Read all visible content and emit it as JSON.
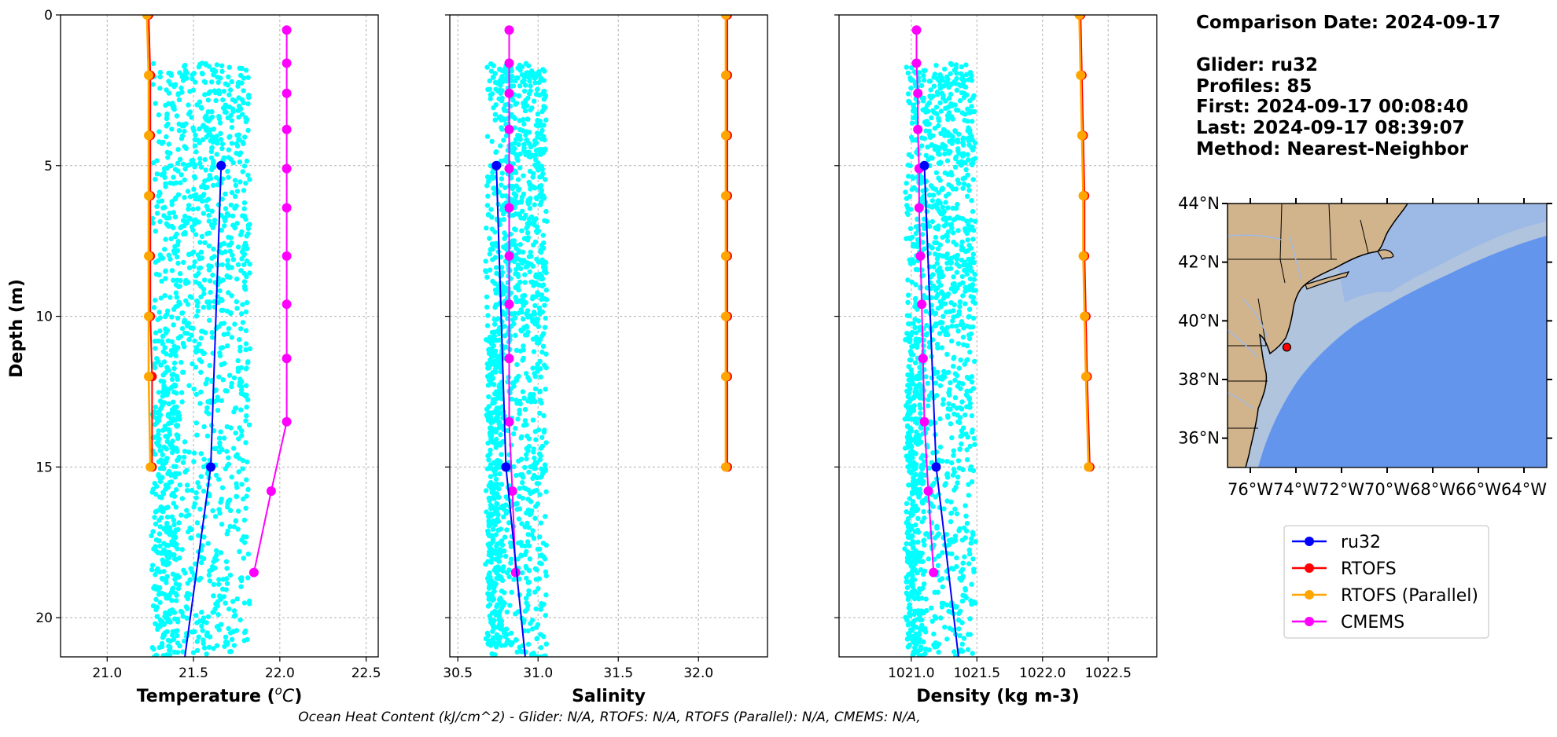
{
  "info": {
    "comparison_date": "Comparison Date: 2024-09-17",
    "glider": "Glider: ru32",
    "profiles": "Profiles: 85",
    "first": "First: 2024-09-17 00:08:40",
    "last": "Last: 2024-09-17 08:39:07",
    "method": "Method: Nearest-Neighbor"
  },
  "footer": "Ocean Heat Content (kJ/cm^2) - Glider: N/A,  RTOFS: N/A,  RTOFS (Parallel): N/A,  CMEMS: N/A,",
  "colors": {
    "glider_scatter": "#00ffff",
    "ru32": "#0000ff",
    "rtofs": "#ff0000",
    "rtofs_parallel": "#ffa500",
    "cmems": "#ff00ff",
    "land": "#d2b48c",
    "shelf": "#b0c4de",
    "ocean": "#6495ed"
  },
  "legend": [
    {
      "label": "ru32",
      "color": "#0000ff"
    },
    {
      "label": "RTOFS",
      "color": "#ff0000"
    },
    {
      "label": "RTOFS (Parallel)",
      "color": "#ffa500"
    },
    {
      "label": "CMEMS",
      "color": "#ff00ff"
    }
  ],
  "map": {
    "lat_labels": [
      "44°N",
      "42°N",
      "40°N",
      "38°N",
      "36°N"
    ],
    "lon_labels": [
      "76°W",
      "74°W",
      "72°W",
      "70°W",
      "68°W",
      "66°W",
      "64°W"
    ],
    "lat_range": [
      35,
      44
    ],
    "lon_range": [
      -77,
      -63
    ],
    "glider_position": {
      "lon": -74.4,
      "lat": 39.1
    }
  },
  "chart_data": [
    {
      "type": "line",
      "name": "temperature",
      "xlabel": "Temperature (°C)",
      "ylabel": "Depth (m)",
      "xlim": [
        20.73,
        22.57
      ],
      "ylim": [
        21.3,
        0
      ],
      "xticks": [
        21.0,
        21.5,
        22.0,
        22.5
      ],
      "xtick_labels": [
        "21.0",
        "21.5",
        "22.0",
        "22.5"
      ],
      "yticks": [
        0,
        5,
        10,
        15,
        20
      ],
      "ytick_labels": [
        "0",
        "5",
        "10",
        "15",
        "20"
      ],
      "glider_scatter": {
        "depth_range": [
          1.6,
          21.3
        ],
        "x_core": [
          21.27,
          21.82
        ],
        "x_spread": 0.03
      },
      "series": [
        {
          "name": "RTOFS",
          "depth": [
            0,
            2,
            4,
            6,
            8,
            10,
            12,
            15
          ],
          "values": [
            21.24,
            21.25,
            21.25,
            21.25,
            21.25,
            21.25,
            21.26,
            21.26
          ]
        },
        {
          "name": "RTOFS (Parallel)",
          "depth": [
            0,
            2,
            4,
            6,
            8,
            10,
            12,
            15
          ],
          "values": [
            21.23,
            21.24,
            21.24,
            21.24,
            21.24,
            21.24,
            21.24,
            21.25
          ]
        },
        {
          "name": "CMEMS",
          "depth": [
            0.5,
            1.6,
            2.6,
            3.8,
            5.1,
            6.4,
            8.0,
            9.6,
            11.4,
            13.5,
            15.8,
            18.5
          ],
          "values": [
            22.04,
            22.04,
            22.04,
            22.04,
            22.04,
            22.04,
            22.04,
            22.04,
            22.04,
            22.04,
            21.95,
            21.85
          ]
        },
        {
          "name": "ru32",
          "depth": [
            5,
            15,
            21.3
          ],
          "values": [
            21.66,
            21.6,
            21.45
          ],
          "markers": [
            true,
            true,
            false
          ]
        }
      ]
    },
    {
      "type": "line",
      "name": "salinity",
      "xlabel": "Salinity",
      "xlim": [
        30.45,
        32.43
      ],
      "ylim": [
        21.3,
        0
      ],
      "xticks": [
        30.5,
        31.0,
        31.5,
        32.0
      ],
      "xtick_labels": [
        "30.5",
        "31.0",
        "31.5",
        "32.0"
      ],
      "glider_scatter": {
        "depth_range": [
          1.6,
          21.3
        ],
        "x_core": [
          30.68,
          31.05
        ],
        "x_spread": 0.02
      },
      "series": [
        {
          "name": "RTOFS",
          "depth": [
            0,
            2,
            4,
            6,
            8,
            10,
            12,
            15
          ],
          "values": [
            32.18,
            32.18,
            32.18,
            32.18,
            32.18,
            32.18,
            32.18,
            32.18
          ]
        },
        {
          "name": "RTOFS (Parallel)",
          "depth": [
            0,
            2,
            4,
            6,
            8,
            10,
            12,
            15
          ],
          "values": [
            32.17,
            32.17,
            32.17,
            32.17,
            32.17,
            32.17,
            32.17,
            32.17
          ]
        },
        {
          "name": "CMEMS",
          "depth": [
            0.5,
            1.6,
            2.6,
            3.8,
            5.1,
            6.4,
            8.0,
            9.6,
            11.4,
            13.5,
            15.8,
            18.5
          ],
          "values": [
            30.82,
            30.82,
            30.82,
            30.82,
            30.82,
            30.82,
            30.82,
            30.82,
            30.82,
            30.82,
            30.84,
            30.86
          ]
        },
        {
          "name": "ru32",
          "depth": [
            5,
            15,
            21.3
          ],
          "values": [
            30.74,
            30.8,
            30.92
          ],
          "markers": [
            true,
            true,
            false
          ]
        }
      ]
    },
    {
      "type": "line",
      "name": "density",
      "xlabel": "Density (kg m-3)",
      "xlim": [
        1020.45,
        1022.87
      ],
      "ylim": [
        21.3,
        0
      ],
      "xticks": [
        1021.0,
        1021.5,
        1022.0,
        1022.5
      ],
      "xtick_labels": [
        "1021.0",
        "1021.5",
        "1022.0",
        "1022.5"
      ],
      "glider_scatter": {
        "depth_range": [
          1.6,
          21.3
        ],
        "x_core": [
          1020.96,
          1021.48
        ],
        "x_spread": 0.03
      },
      "series": [
        {
          "name": "RTOFS",
          "depth": [
            0,
            2,
            4,
            6,
            8,
            10,
            12,
            15
          ],
          "values": [
            1022.29,
            1022.3,
            1022.31,
            1022.32,
            1022.32,
            1022.33,
            1022.34,
            1022.36
          ]
        },
        {
          "name": "RTOFS (Parallel)",
          "depth": [
            0,
            2,
            4,
            6,
            8,
            10,
            12,
            15
          ],
          "values": [
            1022.28,
            1022.29,
            1022.3,
            1022.31,
            1022.31,
            1022.32,
            1022.33,
            1022.35
          ]
        },
        {
          "name": "CMEMS",
          "depth": [
            0.5,
            1.6,
            2.6,
            3.8,
            5.1,
            6.4,
            8.0,
            9.6,
            11.4,
            13.5,
            15.8,
            18.5
          ],
          "values": [
            1021.04,
            1021.04,
            1021.05,
            1021.05,
            1021.06,
            1021.06,
            1021.07,
            1021.08,
            1021.09,
            1021.1,
            1021.13,
            1021.17
          ]
        },
        {
          "name": "ru32",
          "depth": [
            5,
            15,
            21.3
          ],
          "values": [
            1021.1,
            1021.19,
            1021.36
          ],
          "markers": [
            true,
            true,
            false
          ]
        }
      ]
    }
  ]
}
